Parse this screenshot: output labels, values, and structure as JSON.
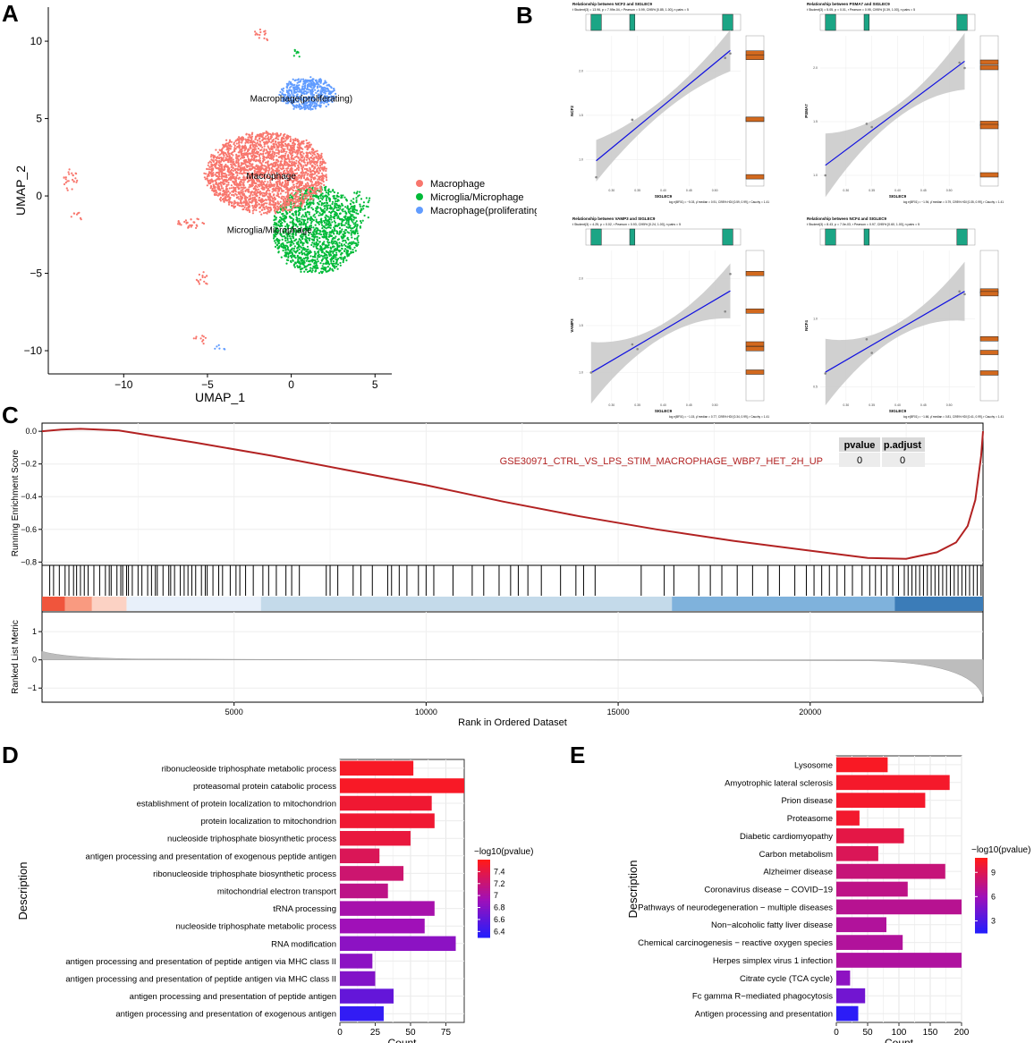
{
  "panels": {
    "a": "A",
    "b": "B",
    "c": "C",
    "d": "D",
    "e": "E"
  },
  "colors": {
    "macrophage": "#F8766D",
    "microglia": "#00BA38",
    "proliferating": "#619CFF",
    "gsea_curve": "#B22222",
    "reg_line": "#1010E0",
    "band": "#C8C8C8",
    "teal": "#1BA585",
    "orange": "#D2691E",
    "grad_low": "#1E1EFF",
    "grad_high": "#FF1A1A"
  },
  "chart_data": [
    {
      "id": "umap",
      "type": "scatter",
      "xlabel": "UMAP_1",
      "ylabel": "UMAP_2",
      "xlim": [
        -14.5,
        6
      ],
      "ylim": [
        -11.5,
        12.2
      ],
      "xticks": [
        -10,
        -5,
        0,
        5
      ],
      "yticks": [
        10,
        5,
        0,
        -5,
        -10
      ],
      "xtick_labels": [
        "−10",
        "−5",
        "0",
        "5"
      ],
      "ytick_labels": [
        "10",
        "5",
        "0",
        "−5",
        "−10"
      ],
      "legend": [
        "Macrophage",
        "Microglia/Microphage",
        "Macrophage(proliferating)"
      ],
      "cluster_labels": [
        {
          "text": "Macrophage(proliferating)",
          "x": 0.6,
          "y": 6.1
        },
        {
          "text": "Macrophage",
          "x": -1.2,
          "y": 1.1
        },
        {
          "text": "Microglia/Microphage",
          "x": -1.3,
          "y": -2.4
        }
      ],
      "clusters": [
        {
          "series": 0,
          "cx": -1.5,
          "cy": 1.5,
          "rx": 3.6,
          "ry": 2.6,
          "n": 2600
        },
        {
          "series": 1,
          "cx": 1.5,
          "cy": -2.2,
          "rx": 2.6,
          "ry": 2.8,
          "n": 1500
        },
        {
          "series": 2,
          "cx": 1.0,
          "cy": 6.6,
          "rx": 1.6,
          "ry": 1.0,
          "n": 500
        },
        {
          "series": 0,
          "cx": -13.2,
          "cy": 1.0,
          "rx": 0.5,
          "ry": 0.7,
          "n": 25
        },
        {
          "series": 0,
          "cx": -12.8,
          "cy": -1.2,
          "rx": 0.3,
          "ry": 0.4,
          "n": 8
        },
        {
          "series": 0,
          "cx": -5.3,
          "cy": -5.3,
          "rx": 0.4,
          "ry": 0.4,
          "n": 15
        },
        {
          "series": 0,
          "cx": -5.5,
          "cy": -9.3,
          "rx": 0.5,
          "ry": 0.3,
          "n": 10
        },
        {
          "series": 2,
          "cx": -4.3,
          "cy": -9.8,
          "rx": 0.4,
          "ry": 0.15,
          "n": 6
        },
        {
          "series": 0,
          "cx": -1.8,
          "cy": 10.4,
          "rx": 0.5,
          "ry": 0.4,
          "n": 15
        },
        {
          "series": 1,
          "cx": 0.3,
          "cy": 9.3,
          "rx": 0.2,
          "ry": 0.3,
          "n": 8
        },
        {
          "series": 0,
          "cx": -6.0,
          "cy": -1.8,
          "rx": 0.7,
          "ry": 0.3,
          "n": 30
        },
        {
          "series": 1,
          "cx": 4.2,
          "cy": -0.6,
          "rx": 0.6,
          "ry": 1.0,
          "n": 40
        }
      ]
    },
    {
      "id": "corr",
      "type": "scatter",
      "subplots": [
        {
          "title": "Relationship between NCF2 and SIGLEC9",
          "subtitle": "t Student(3) = 13.96, p = 7.99e-04, r Pearson = 0.99, CI95% [0.85, 1.00], n pairs = 5",
          "xlabel": "SIGLEC9",
          "ylabel": "NCF2",
          "footer": "log e(BF01) = −5.03, ρ̂ median = 0.91, CI95% HDI [0.59, 0.99], r Cauchy = 1.41",
          "xlim": [
            0.25,
            0.55
          ],
          "ylim": [
            0.7,
            2.4
          ],
          "xticks": [
            0.3,
            0.35,
            0.4,
            0.45,
            0.5
          ],
          "yticks": [
            1.0,
            1.5,
            2.0
          ],
          "points": [
            [
              0.27,
              0.8
            ],
            [
              0.34,
              1.45
            ],
            [
              0.34,
              1.45
            ],
            [
              0.52,
              2.15
            ],
            [
              0.53,
              2.2
            ]
          ],
          "fit": [
            0.4,
            0.075
          ]
        },
        {
          "title": "Relationship between PSMA7 and SIGLEC9",
          "subtitle": "t Student(3) = 5.05, p = 0.01, r Pearson = 0.95, CI95% [0.39, 1.00], n pairs = 5",
          "xlabel": "SIGLEC9",
          "ylabel": "PSMA7",
          "footer": "log e(BF01) = −1.94, ρ̂ median = 0.79, CI95% HDI [0.35, 0.99], r Cauchy = 1.41",
          "xlim": [
            0.25,
            0.55
          ],
          "ylim": [
            0.9,
            2.3
          ],
          "xticks": [
            0.3,
            0.35,
            0.4,
            0.45,
            0.5
          ],
          "yticks": [
            1.0,
            1.5,
            2.0
          ],
          "points": [
            [
              0.26,
              1.0
            ],
            [
              0.34,
              1.48
            ],
            [
              0.35,
              1.45
            ],
            [
              0.52,
              2.05
            ],
            [
              0.53,
              2.0
            ]
          ],
          "fit": [
            0.55,
            0.06
          ]
        },
        {
          "title": "Relationship between VAMP3 and SIGLEC9",
          "subtitle": "t Student(3) = 4.25, p = 0.02, r Pearson = 0.93, CI95% [0.24, 1.00], n pairs = 5",
          "xlabel": "SIGLEC9",
          "ylabel": "VAMP3",
          "footer": "log e(BF01) = −1.15, ρ̂ median = 0.77, CI95% HDI [0.34, 0.99], r Cauchy = 1.41",
          "xlim": [
            0.25,
            0.55
          ],
          "ylim": [
            0.7,
            2.3
          ],
          "xticks": [
            0.3,
            0.35,
            0.4,
            0.45,
            0.5
          ],
          "yticks": [
            1.0,
            1.5,
            2.0
          ],
          "points": [
            [
              0.26,
              1.0
            ],
            [
              0.34,
              1.3
            ],
            [
              0.35,
              1.25
            ],
            [
              0.52,
              1.65
            ],
            [
              0.53,
              2.05
            ]
          ],
          "fit": [
            0.6,
            0.07
          ]
        },
        {
          "title": "Relationship between NCF4 and SIGLEC9",
          "subtitle": "t Student(3) = 8.43, p = 7.0e-03, r Pearson = 0.97, CI95% [0.60, 1.00], n pairs = 5",
          "xlabel": "SIGLEC9",
          "ylabel": "NCF4",
          "footer": "log e(BF01) = −1.66, ρ̂ median = 0.81, CI95% HDI [0.41, 0.99], r Cauchy = 1.41",
          "xlim": [
            0.25,
            0.55
          ],
          "ylim": [
            0.4,
            1.5
          ],
          "xticks": [
            0.3,
            0.35,
            0.4,
            0.45,
            0.5
          ],
          "yticks": [
            0.5,
            1.0
          ],
          "points": [
            [
              0.26,
              0.6
            ],
            [
              0.34,
              0.85
            ],
            [
              0.35,
              0.75
            ],
            [
              0.52,
              1.2
            ],
            [
              0.53,
              1.18
            ]
          ],
          "fit": [
            0.45,
            0.05
          ]
        }
      ]
    },
    {
      "id": "gsea",
      "type": "line",
      "title": "GSE30971_CTRL_VS_LPS_STIM_MACROPHAGE_WBP7_HET_2H_UP",
      "ylabel": "Running Enrichment Score",
      "ylabel2": "Ranked List Metric",
      "xlabel": "Rank in Ordered Dataset",
      "xlim": [
        0,
        24500
      ],
      "ylim": [
        -0.82,
        0.05
      ],
      "ylim2": [
        -1.5,
        1.7
      ],
      "yticks": [
        0.0,
        -0.2,
        -0.4,
        -0.6,
        -0.8
      ],
      "ytick_labels": [
        "0.0",
        "−0.2",
        "−0.4",
        "−0.6",
        "−0.8"
      ],
      "yticks2": [
        1,
        0,
        -1
      ],
      "ytick_labels2": [
        "1",
        "0",
        "−1"
      ],
      "xticks": [
        5000,
        10000,
        15000,
        20000
      ],
      "x": [
        0,
        500,
        1000,
        2000,
        4000,
        6000,
        8000,
        10000,
        12000,
        14000,
        16000,
        18000,
        20000,
        21500,
        22500,
        23300,
        23800,
        24100,
        24300,
        24450,
        24500
      ],
      "y": [
        0.0,
        0.01,
        0.015,
        0.005,
        -0.07,
        -0.15,
        -0.24,
        -0.33,
        -0.43,
        -0.52,
        -0.6,
        -0.67,
        -0.73,
        -0.775,
        -0.78,
        -0.74,
        -0.68,
        -0.58,
        -0.42,
        -0.15,
        0.0
      ],
      "table": {
        "headers": [
          "pvalue",
          "p.adjust"
        ],
        "values": [
          "0",
          "0"
        ]
      },
      "hits": [
        200,
        300,
        450,
        600,
        700,
        820,
        900,
        1000,
        1100,
        1200,
        1350,
        1500,
        1650,
        1750,
        1800,
        1950,
        2050,
        2100,
        2200,
        2250,
        2350,
        2500,
        2600,
        2750,
        2850,
        2950,
        3000,
        3150,
        3300,
        3350,
        3450,
        3600,
        3700,
        3800,
        3900,
        4000,
        4150,
        4250,
        4300,
        4450,
        4600,
        4700,
        4900,
        5050,
        5150,
        5300,
        5500,
        5750,
        5900,
        6100,
        6350,
        6500,
        6700,
        7400,
        7500,
        7700,
        8100,
        8300,
        8600,
        9000,
        9100,
        9300,
        9500,
        9800,
        10000,
        10200,
        10700,
        11200,
        11500,
        11900,
        12200,
        12400,
        12650,
        13000,
        13500,
        13900,
        14100,
        14400,
        15600,
        16200,
        16450,
        17100,
        17400,
        17700,
        18100,
        18500,
        18900,
        19200,
        19600,
        19900,
        20100,
        20300,
        20500,
        20700,
        20900,
        21100,
        21350,
        21550,
        21700,
        21850,
        22000,
        22150,
        22300,
        22450,
        22550,
        22650,
        22750,
        22850,
        22950,
        23050,
        23150,
        23250,
        23350,
        23450,
        23550,
        23650,
        23750,
        23850,
        23950,
        24050,
        24150,
        24250,
        24350,
        24450
      ],
      "heatbar": [
        {
          "from": 0,
          "to": 600,
          "color": "#F0553C"
        },
        {
          "from": 600,
          "to": 1300,
          "color": "#F99A80"
        },
        {
          "from": 1300,
          "to": 2200,
          "color": "#FCD2C4"
        },
        {
          "from": 2200,
          "to": 5700,
          "color": "#E8F0FA"
        },
        {
          "from": 5700,
          "to": 16400,
          "color": "#C4DAEA"
        },
        {
          "from": 16400,
          "to": 22200,
          "color": "#7FB2DC"
        },
        {
          "from": 22200,
          "to": 24500,
          "color": "#3B7CB8"
        }
      ]
    },
    {
      "id": "go",
      "type": "bar",
      "xlabel": "Count",
      "ylabel": "Description",
      "legend_title": "−log10(pvalue)",
      "legend_ticks": [
        7.4,
        7.2,
        7.0,
        6.8,
        6.6,
        6.4
      ],
      "legend_range": [
        6.3,
        7.6
      ],
      "xlim": [
        0,
        88
      ],
      "xticks": [
        0,
        25,
        50,
        75
      ],
      "categories": [
        "ribonucleoside triphosphate metabolic process",
        "proteasomal protein catabolic process",
        "establishment of protein localization to mitochondrion",
        "protein localization to mitochondrion",
        "nucleoside triphosphate biosynthetic process",
        "antigen processing and presentation of exogenous peptide antigen",
        "ribonucleoside triphosphate biosynthetic process",
        "mitochondrial electron transport",
        "tRNA processing",
        "nucleoside triphosphate metabolic process",
        "RNA modification",
        "antigen processing and presentation of peptide antigen via MHC class II",
        "antigen processing and presentation of peptide antigen via MHC class II",
        "antigen processing and presentation of peptide antigen",
        "antigen processing and presentation of exogenous antigen"
      ],
      "values": [
        52,
        88,
        65,
        67,
        50,
        28,
        45,
        34,
        67,
        60,
        82,
        23,
        25,
        38,
        31
      ],
      "colorvals": [
        7.55,
        7.55,
        7.5,
        7.5,
        7.45,
        7.35,
        7.25,
        7.15,
        7.0,
        6.95,
        6.85,
        6.85,
        6.8,
        6.65,
        6.4
      ]
    },
    {
      "id": "kegg",
      "type": "bar",
      "xlabel": "Count",
      "ylabel": "Description",
      "legend_title": "−log10(pvalue)",
      "legend_ticks": [
        9,
        6,
        3
      ],
      "legend_range": [
        1.5,
        10.8
      ],
      "xlim": [
        0,
        200
      ],
      "xticks": [
        0,
        50,
        100,
        150,
        200
      ],
      "categories": [
        "Lysosome",
        "Amyotrophic lateral sclerosis",
        "Prion disease",
        "Proteasome",
        "Diabetic cardiomyopathy",
        "Carbon metabolism",
        "Alzheimer disease",
        "Coronavirus disease − COVID−19",
        "Pathways of neurodegeneration − multiple diseases",
        "Non−alcoholic fatty liver disease",
        "Chemical carcinogenesis − reactive oxygen species",
        "Herpes simplex virus 1 infection",
        "Citrate cycle (TCA cycle)",
        "Fc gamma R−mediated phagocytosis",
        "Antigen processing and presentation"
      ],
      "values": [
        82,
        181,
        142,
        37,
        108,
        67,
        174,
        114,
        200,
        80,
        106,
        200,
        22,
        46,
        35
      ],
      "colorvals": [
        10.5,
        10.3,
        10.3,
        10.2,
        9.5,
        9.0,
        8.0,
        7.6,
        7.3,
        7.0,
        7.0,
        6.9,
        5.5,
        4.5,
        2.0
      ]
    }
  ]
}
